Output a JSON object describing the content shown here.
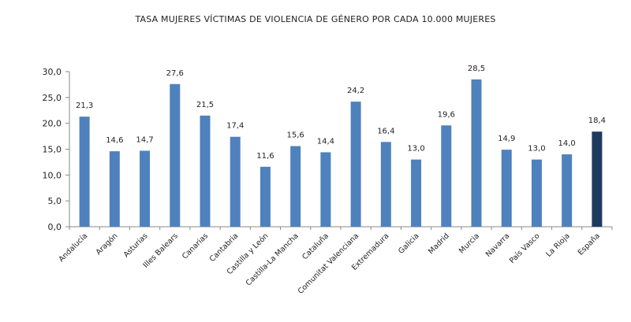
{
  "chart_data": {
    "type": "bar",
    "title": "TASA MUJERES VÍCTIMAS DE VIOLENCIA DE GÉNERO POR CADA 10.000 MUJERES",
    "xlabel": "",
    "ylabel": "",
    "categories": [
      "Andalucía",
      "Aragón",
      "Asturias",
      "Illes Balears",
      "Canarias",
      "Cantabria",
      "Castilla y León",
      "Castilla-La Mancha",
      "Cataluña",
      "Comunitat Valenciana",
      "Extremadura",
      "Galicia",
      "Madrid",
      "Murcia",
      "Navarra",
      "País Vasco",
      "La Rioja",
      "España"
    ],
    "values": [
      21.3,
      14.6,
      14.7,
      27.6,
      21.5,
      17.4,
      11.6,
      15.6,
      14.4,
      24.2,
      16.4,
      13.0,
      19.6,
      28.5,
      14.9,
      13.0,
      14.0,
      18.4
    ],
    "value_labels": [
      "21,3",
      "14,6",
      "14,7",
      "27,6",
      "21,5",
      "17,4",
      "11,6",
      "15,6",
      "14,4",
      "24,2",
      "16,4",
      "13,0",
      "19,6",
      "28,5",
      "14,9",
      "13,0",
      "14,0",
      "18,4"
    ],
    "yticks": [
      0,
      5,
      10,
      15,
      20,
      25,
      30
    ],
    "ytick_labels": [
      "0,0",
      "5,0",
      "10,0",
      "15,0",
      "20,0",
      "25,0",
      "30,0"
    ],
    "ylim": [
      0,
      30
    ],
    "grid": false,
    "legend": "none",
    "colors": {
      "bar": "#4f81bd",
      "highlight_bar": "#1f3a5f",
      "axis": "#888888"
    },
    "highlight_category": "España"
  }
}
